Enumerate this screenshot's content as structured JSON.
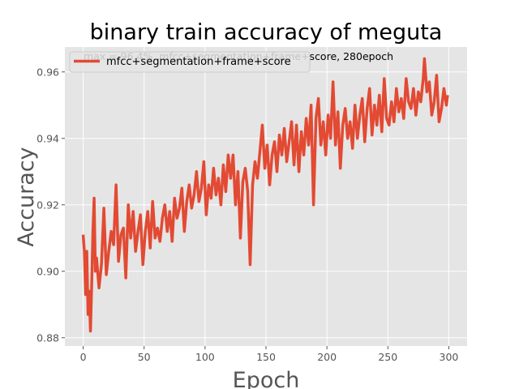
{
  "chart_data": {
    "type": "line",
    "title": "binary train accuracy of meguta",
    "xlabel": "Epoch",
    "ylabel": "Accuracy",
    "xlim": [
      -15,
      315
    ],
    "ylim": [
      0.8775,
      0.9675
    ],
    "xticks": [
      0,
      50,
      100,
      150,
      200,
      250,
      300
    ],
    "xtick_labels": [
      "0",
      "50",
      "100",
      "150",
      "200",
      "250",
      "300"
    ],
    "yticks": [
      0.88,
      0.9,
      0.92,
      0.94,
      0.96
    ],
    "ytick_labels": [
      "0.88",
      "0.90",
      "0.92",
      "0.94",
      "0.96"
    ],
    "grid": true,
    "style": "ggplot",
    "legend_position": "top-left",
    "annotation": "max = 96.4%, mfcc+segmentation+frame+score, 280epoch",
    "series": [
      {
        "name": "mfcc+segmentation+frame+score",
        "color": "#E24A33",
        "anchors": [
          [
            0,
            0.911
          ],
          [
            1,
            0.906
          ],
          [
            2,
            0.893
          ],
          [
            3,
            0.906
          ],
          [
            4,
            0.887
          ],
          [
            5,
            0.894
          ],
          [
            6,
            0.882
          ],
          [
            7,
            0.896
          ],
          [
            8,
            0.912
          ],
          [
            9,
            0.922
          ],
          [
            10,
            0.9
          ],
          [
            11,
            0.904
          ],
          [
            13,
            0.895
          ],
          [
            15,
            0.902
          ],
          [
            17,
            0.919
          ],
          [
            19,
            0.899
          ],
          [
            21,
            0.906
          ],
          [
            23,
            0.912
          ],
          [
            25,
            0.908
          ],
          [
            27,
            0.926
          ],
          [
            29,
            0.903
          ],
          [
            31,
            0.911
          ],
          [
            33,
            0.913
          ],
          [
            35,
            0.898
          ],
          [
            37,
            0.92
          ],
          [
            39,
            0.91
          ],
          [
            41,
            0.918
          ],
          [
            43,
            0.906
          ],
          [
            45,
            0.912
          ],
          [
            47,
            0.917
          ],
          [
            49,
            0.902
          ],
          [
            51,
            0.912
          ],
          [
            53,
            0.918
          ],
          [
            55,
            0.907
          ],
          [
            57,
            0.921
          ],
          [
            59,
            0.91
          ],
          [
            61,
            0.913
          ],
          [
            63,
            0.909
          ],
          [
            65,
            0.916
          ],
          [
            67,
            0.92
          ],
          [
            69,
            0.912
          ],
          [
            71,
            0.918
          ],
          [
            73,
            0.909
          ],
          [
            75,
            0.922
          ],
          [
            77,
            0.916
          ],
          [
            79,
            0.919
          ],
          [
            81,
            0.925
          ],
          [
            83,
            0.912
          ],
          [
            85,
            0.921
          ],
          [
            87,
            0.926
          ],
          [
            89,
            0.919
          ],
          [
            91,
            0.923
          ],
          [
            93,
            0.93
          ],
          [
            95,
            0.921
          ],
          [
            97,
            0.925
          ],
          [
            99,
            0.933
          ],
          [
            101,
            0.917
          ],
          [
            103,
            0.926
          ],
          [
            105,
            0.922
          ],
          [
            107,
            0.931
          ],
          [
            109,
            0.923
          ],
          [
            111,
            0.928
          ],
          [
            113,
            0.92
          ],
          [
            115,
            0.932
          ],
          [
            117,
            0.924
          ],
          [
            119,
            0.935
          ],
          [
            121,
            0.928
          ],
          [
            123,
            0.935
          ],
          [
            125,
            0.92
          ],
          [
            127,
            0.93
          ],
          [
            129,
            0.91
          ],
          [
            131,
            0.927
          ],
          [
            133,
            0.931
          ],
          [
            135,
            0.924
          ],
          [
            137,
            0.902
          ],
          [
            139,
            0.926
          ],
          [
            141,
            0.933
          ],
          [
            143,
            0.928
          ],
          [
            145,
            0.936
          ],
          [
            147,
            0.944
          ],
          [
            149,
            0.931
          ],
          [
            151,
            0.938
          ],
          [
            153,
            0.926
          ],
          [
            155,
            0.935
          ],
          [
            157,
            0.939
          ],
          [
            159,
            0.93
          ],
          [
            161,
            0.941
          ],
          [
            163,
            0.935
          ],
          [
            165,
            0.943
          ],
          [
            167,
            0.933
          ],
          [
            169,
            0.939
          ],
          [
            171,
            0.945
          ],
          [
            173,
            0.932
          ],
          [
            175,
            0.944
          ],
          [
            177,
            0.93
          ],
          [
            179,
            0.942
          ],
          [
            181,
            0.935
          ],
          [
            183,
            0.946
          ],
          [
            185,
            0.938
          ],
          [
            187,
            0.95
          ],
          [
            189,
            0.92
          ],
          [
            191,
            0.946
          ],
          [
            193,
            0.952
          ],
          [
            195,
            0.938
          ],
          [
            197,
            0.945
          ],
          [
            199,
            0.935
          ],
          [
            201,
            0.947
          ],
          [
            203,
            0.94
          ],
          [
            205,
            0.957
          ],
          [
            207,
            0.938
          ],
          [
            209,
            0.948
          ],
          [
            211,
            0.931
          ],
          [
            213,
            0.944
          ],
          [
            215,
            0.949
          ],
          [
            217,
            0.94
          ],
          [
            219,
            0.945
          ],
          [
            221,
            0.937
          ],
          [
            223,
            0.95
          ],
          [
            225,
            0.94
          ],
          [
            227,
            0.947
          ],
          [
            229,
            0.952
          ],
          [
            231,
            0.939
          ],
          [
            233,
            0.949
          ],
          [
            235,
            0.955
          ],
          [
            237,
            0.941
          ],
          [
            239,
            0.95
          ],
          [
            241,
            0.944
          ],
          [
            243,
            0.953
          ],
          [
            245,
            0.942
          ],
          [
            247,
            0.958
          ],
          [
            249,
            0.946
          ],
          [
            251,
            0.944
          ],
          [
            253,
            0.951
          ],
          [
            255,
            0.945
          ],
          [
            257,
            0.955
          ],
          [
            259,
            0.948
          ],
          [
            261,
            0.952
          ],
          [
            263,
            0.946
          ],
          [
            265,
            0.958
          ],
          [
            267,
            0.951
          ],
          [
            269,
            0.949
          ],
          [
            271,
            0.955
          ],
          [
            273,
            0.947
          ],
          [
            275,
            0.954
          ],
          [
            277,
            0.951
          ],
          [
            279,
            0.958
          ],
          [
            280,
            0.964
          ],
          [
            282,
            0.954
          ],
          [
            284,
            0.957
          ],
          [
            286,
            0.947
          ],
          [
            288,
            0.951
          ],
          [
            290,
            0.959
          ],
          [
            292,
            0.945
          ],
          [
            294,
            0.949
          ],
          [
            296,
            0.955
          ],
          [
            298,
            0.95
          ],
          [
            299,
            0.953
          ]
        ]
      }
    ]
  }
}
